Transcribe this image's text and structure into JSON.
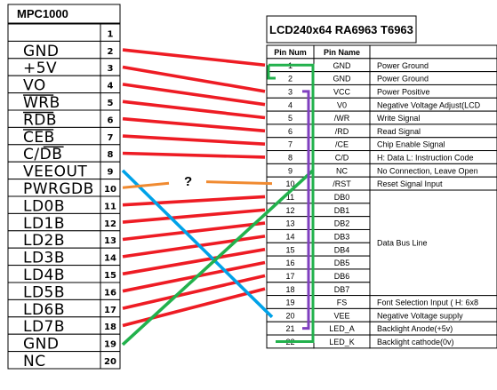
{
  "connector": {
    "title": "MPC1000",
    "pins": [
      {
        "num": "1",
        "label": ""
      },
      {
        "num": "2",
        "label": "GND"
      },
      {
        "num": "3",
        "label": "+5V"
      },
      {
        "num": "4",
        "label": "VO"
      },
      {
        "num": "5",
        "label": "WRB"
      },
      {
        "num": "6",
        "label": "RDB"
      },
      {
        "num": "7",
        "label": "CEB"
      },
      {
        "num": "8",
        "label": "C/DB"
      },
      {
        "num": "9",
        "label": "VEEOUT"
      },
      {
        "num": "10",
        "label": "PWRGDB"
      },
      {
        "num": "11",
        "label": "LD0B"
      },
      {
        "num": "12",
        "label": "LD1B"
      },
      {
        "num": "13",
        "label": "LD2B"
      },
      {
        "num": "14",
        "label": "LD3B"
      },
      {
        "num": "15",
        "label": "LD4B"
      },
      {
        "num": "16",
        "label": "LD5B"
      },
      {
        "num": "17",
        "label": "LD6B"
      },
      {
        "num": "18",
        "label": "LD7B"
      },
      {
        "num": "19",
        "label": "GND"
      },
      {
        "num": "20",
        "label": "NC"
      }
    ]
  },
  "lcd": {
    "title": "LCD240x64  RA6963  T6963",
    "headers": {
      "num": "Pin Num",
      "name": "Pin Name",
      "desc": ""
    },
    "pins": [
      {
        "num": "1",
        "name": "GND",
        "desc": "Power Ground"
      },
      {
        "num": "2",
        "name": "GND",
        "desc": "Power Ground"
      },
      {
        "num": "3",
        "name": "VCC",
        "desc": "Power Positive"
      },
      {
        "num": "4",
        "name": "V0",
        "desc": "Negative Voltage Adjust(LCD"
      },
      {
        "num": "5",
        "name": "/WR",
        "desc": "Write Signal"
      },
      {
        "num": "6",
        "name": "/RD",
        "desc": "Read Signal"
      },
      {
        "num": "7",
        "name": "/CE",
        "desc": "Chip Enable Signal"
      },
      {
        "num": "8",
        "name": "C/D",
        "desc": "H: Data L: Instruction Code"
      },
      {
        "num": "9",
        "name": "NC",
        "desc": "No Connection, Leave Open"
      },
      {
        "num": "10",
        "name": "/RST",
        "desc": "Reset Signal Input"
      },
      {
        "num": "11",
        "name": "DB0",
        "desc": ""
      },
      {
        "num": "12",
        "name": "DB1",
        "desc": ""
      },
      {
        "num": "13",
        "name": "DB2",
        "desc": ""
      },
      {
        "num": "14",
        "name": "DB3",
        "desc": ""
      },
      {
        "num": "15",
        "name": "DB4",
        "desc": ""
      },
      {
        "num": "16",
        "name": "DB5",
        "desc": ""
      },
      {
        "num": "17",
        "name": "DB6",
        "desc": ""
      },
      {
        "num": "18",
        "name": "DB7",
        "desc": ""
      },
      {
        "num": "19",
        "name": "FS",
        "desc": "Font Selection Input ( H: 6x8"
      },
      {
        "num": "20",
        "name": "VEE",
        "desc": "Negative Voltage supply"
      },
      {
        "num": "21",
        "name": "LED_A",
        "desc": "Backlight Anode(+5v)"
      },
      {
        "num": "22",
        "name": "LED_K",
        "desc": "Backlight cathode(0v)"
      }
    ],
    "data_bus_label": "Data Bus Line"
  },
  "unknown_mark": "?",
  "colors": {
    "red": "#ee1c24",
    "green": "#22b14c",
    "purple": "#7f3fbf",
    "blue": "#00a2e8",
    "orange": "#f08a30",
    "line": "#000000"
  }
}
